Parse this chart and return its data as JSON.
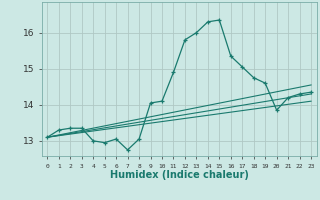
{
  "title": "",
  "xlabel": "Humidex (Indice chaleur)",
  "ylabel": "",
  "background_color": "#cce8e4",
  "grid_color": "#b0c8c4",
  "line_color": "#1a7a6e",
  "xlim": [
    -0.5,
    23.5
  ],
  "ylim": [
    12.58,
    16.85
  ],
  "yticks": [
    13,
    14,
    15,
    16
  ],
  "xtick_labels": [
    "0",
    "1",
    "2",
    "3",
    "4",
    "5",
    "6",
    "7",
    "8",
    "9",
    "10",
    "11",
    "12",
    "13",
    "14",
    "15",
    "16",
    "17",
    "18",
    "19",
    "20",
    "21",
    "22",
    "23"
  ],
  "xticks": [
    0,
    1,
    2,
    3,
    4,
    5,
    6,
    7,
    8,
    9,
    10,
    11,
    12,
    13,
    14,
    15,
    16,
    17,
    18,
    19,
    20,
    21,
    22,
    23
  ],
  "main_x": [
    0,
    1,
    2,
    3,
    4,
    5,
    6,
    7,
    8,
    9,
    10,
    11,
    12,
    13,
    14,
    15,
    16,
    17,
    18,
    19,
    20,
    21,
    22,
    23
  ],
  "main_y": [
    13.1,
    13.3,
    13.35,
    13.35,
    13.0,
    12.95,
    13.05,
    12.75,
    13.05,
    14.05,
    14.1,
    14.9,
    15.8,
    16.0,
    16.3,
    16.35,
    15.35,
    15.05,
    14.75,
    14.6,
    13.85,
    14.2,
    14.3,
    14.35
  ],
  "line1_y_end": 14.1,
  "line2_y_end": 14.3,
  "line3_y_end": 14.55,
  "lines_y_start": 13.1
}
